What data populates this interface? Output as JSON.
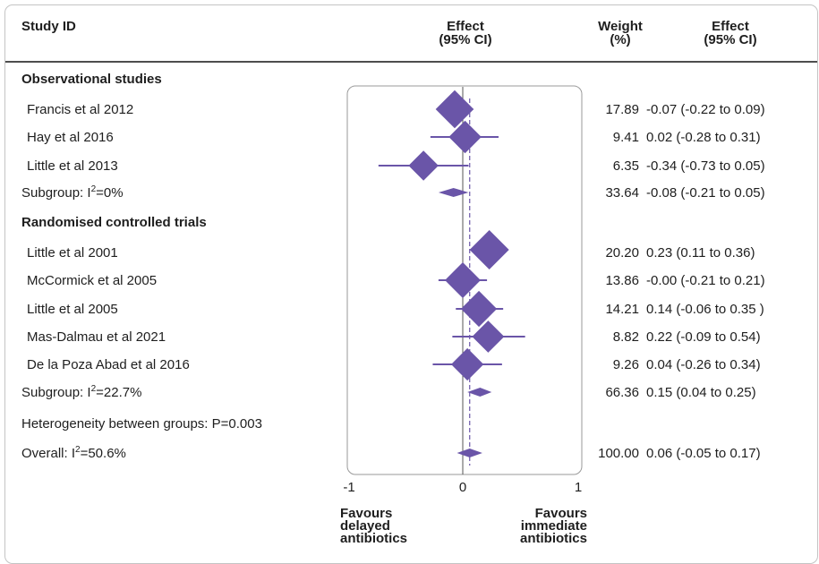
{
  "header": {
    "study_id": "Study ID",
    "effect_plot": "Effect\n(95% CI)",
    "weight": "Weight\n(%)",
    "effect_ci": "Effect\n(95% CI)"
  },
  "rows": [
    {
      "kind": "group",
      "label": "Observational studies"
    },
    {
      "kind": "study",
      "label": "Francis et al 2012",
      "weight": "17.89",
      "ci_text": "-0.07 (-0.22 to 0.09)"
    },
    {
      "kind": "study",
      "label": "Hay et al 2016",
      "weight": "9.41",
      "ci_text": "0.02 (-0.28 to 0.31)"
    },
    {
      "kind": "study",
      "label": "Little et al 2013",
      "weight": "6.35",
      "ci_text": "-0.34 (-0.73 to 0.05)"
    },
    {
      "kind": "subgroup",
      "label_pre": "Subgroup: I",
      "label_sup": "2",
      "label_post": "=0%",
      "weight": "33.64",
      "ci_text": "-0.08 (-0.21 to 0.05)"
    },
    {
      "kind": "group",
      "label": "Randomised controlled trials"
    },
    {
      "kind": "study",
      "label": "Little et al 2001",
      "weight": "20.20",
      "ci_text": "0.23 (0.11 to 0.36)"
    },
    {
      "kind": "study",
      "label": "McCormick et al 2005",
      "weight": "13.86",
      "ci_text": "-0.00 (-0.21 to 0.21)"
    },
    {
      "kind": "study",
      "label": "Little et al 2005",
      "weight": "14.21",
      "ci_text": "0.14 (-0.06 to 0.35 )"
    },
    {
      "kind": "study",
      "label": "Mas-Dalmau et al 2021",
      "weight": "8.82",
      "ci_text": "0.22 (-0.09 to 0.54)"
    },
    {
      "kind": "study",
      "label": "De la Poza Abad et al 2016",
      "weight": "9.26",
      "ci_text": "0.04 (-0.26 to 0.34)"
    },
    {
      "kind": "subgroup",
      "label_pre": "Subgroup: I",
      "label_sup": "2",
      "label_post": "=22.7%",
      "weight": "66.36",
      "ci_text": "0.15 (0.04 to 0.25)"
    },
    {
      "kind": "note",
      "label": "Heterogeneity between groups: P=0.003"
    },
    {
      "kind": "subgroup",
      "label_pre": "Overall: I",
      "label_sup": "2",
      "label_post": "=50.6%",
      "weight": "100.00",
      "ci_text": "0.06 (-0.05 to 0.17)"
    }
  ],
  "axis": {
    "ticks": [
      "-1",
      "0",
      "1"
    ],
    "favours_left": "Favours\ndelayed\nantibiotics",
    "favours_right": "Favours\nimmediate\nantibiotics"
  },
  "colors": {
    "marker": "#6a55a8",
    "axis": "#555555",
    "panel_border": "#9a9a9a"
  },
  "chart_data": {
    "type": "forest",
    "xlim": [
      -1,
      1
    ],
    "xticks": [
      -1,
      0,
      1
    ],
    "reference_line": 0,
    "overall_estimate": 0.06,
    "studies": [
      {
        "name": "Francis et al 2012",
        "group": "Observational studies",
        "effect": -0.07,
        "lower": -0.22,
        "upper": 0.09,
        "weight": 17.89
      },
      {
        "name": "Hay et al 2016",
        "group": "Observational studies",
        "effect": 0.02,
        "lower": -0.28,
        "upper": 0.31,
        "weight": 9.41
      },
      {
        "name": "Little et al 2013",
        "group": "Observational studies",
        "effect": -0.34,
        "lower": -0.73,
        "upper": 0.05,
        "weight": 6.35
      },
      {
        "name": "Little et al 2001",
        "group": "Randomised controlled trials",
        "effect": 0.23,
        "lower": 0.11,
        "upper": 0.36,
        "weight": 20.2
      },
      {
        "name": "McCormick et al 2005",
        "group": "Randomised controlled trials",
        "effect": -0.0,
        "lower": -0.21,
        "upper": 0.21,
        "weight": 13.86
      },
      {
        "name": "Little et al 2005",
        "group": "Randomised controlled trials",
        "effect": 0.14,
        "lower": -0.06,
        "upper": 0.35,
        "weight": 14.21
      },
      {
        "name": "Mas-Dalmau et al 2021",
        "group": "Randomised controlled trials",
        "effect": 0.22,
        "lower": -0.09,
        "upper": 0.54,
        "weight": 8.82
      },
      {
        "name": "De la Poza Abad et al 2016",
        "group": "Randomised controlled trials",
        "effect": 0.04,
        "lower": -0.26,
        "upper": 0.34,
        "weight": 9.26
      }
    ],
    "pooled": [
      {
        "name": "Subgroup: I2=0%",
        "group": "Observational studies",
        "effect": -0.08,
        "lower": -0.21,
        "upper": 0.05,
        "weight": 33.64
      },
      {
        "name": "Subgroup: I2=22.7%",
        "group": "Randomised controlled trials",
        "effect": 0.15,
        "lower": 0.04,
        "upper": 0.25,
        "weight": 66.36
      },
      {
        "name": "Overall: I2=50.6%",
        "group": "Overall",
        "effect": 0.06,
        "lower": -0.05,
        "upper": 0.17,
        "weight": 100.0
      }
    ]
  }
}
